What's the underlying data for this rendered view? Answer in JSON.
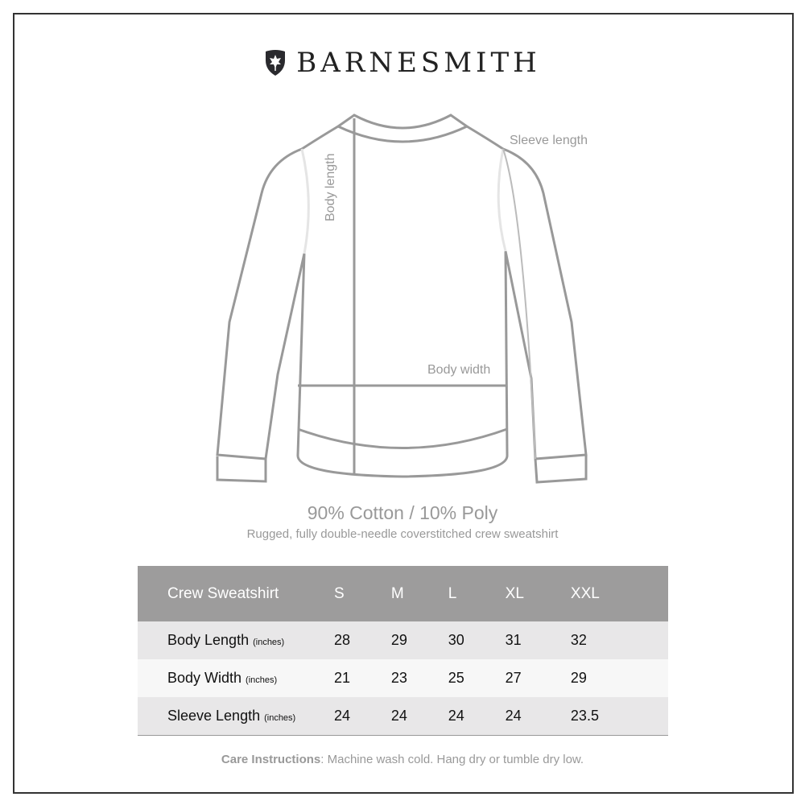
{
  "brand": {
    "name": "BARNESMITH",
    "logo_icon": "shield-leaf-icon"
  },
  "diagram": {
    "labels": {
      "body_length": "Body length",
      "sleeve_length": "Sleeve length",
      "body_width": "Body width"
    }
  },
  "product": {
    "fabric": "90% Cotton / 10% Poly",
    "description": "Rugged, fully double-needle coverstitched crew sweatshirt"
  },
  "size_table": {
    "title": "Crew Sweatshirt",
    "sizes": [
      "S",
      "M",
      "L",
      "XL",
      "XXL"
    ],
    "rows": [
      {
        "label": "Body Length",
        "unit": "(inches)",
        "values": [
          "28",
          "29",
          "30",
          "31",
          "32"
        ]
      },
      {
        "label": "Body Width",
        "unit": "(inches)",
        "values": [
          "21",
          "23",
          "25",
          "27",
          "29"
        ]
      },
      {
        "label": "Sleeve Length",
        "unit": "(inches)",
        "values": [
          "24",
          "24",
          "24",
          "24",
          "23.5"
        ]
      }
    ]
  },
  "care": {
    "label": "Care Instructions",
    "text": ": Machine wash cold. Hang dry or tumble dry low."
  }
}
